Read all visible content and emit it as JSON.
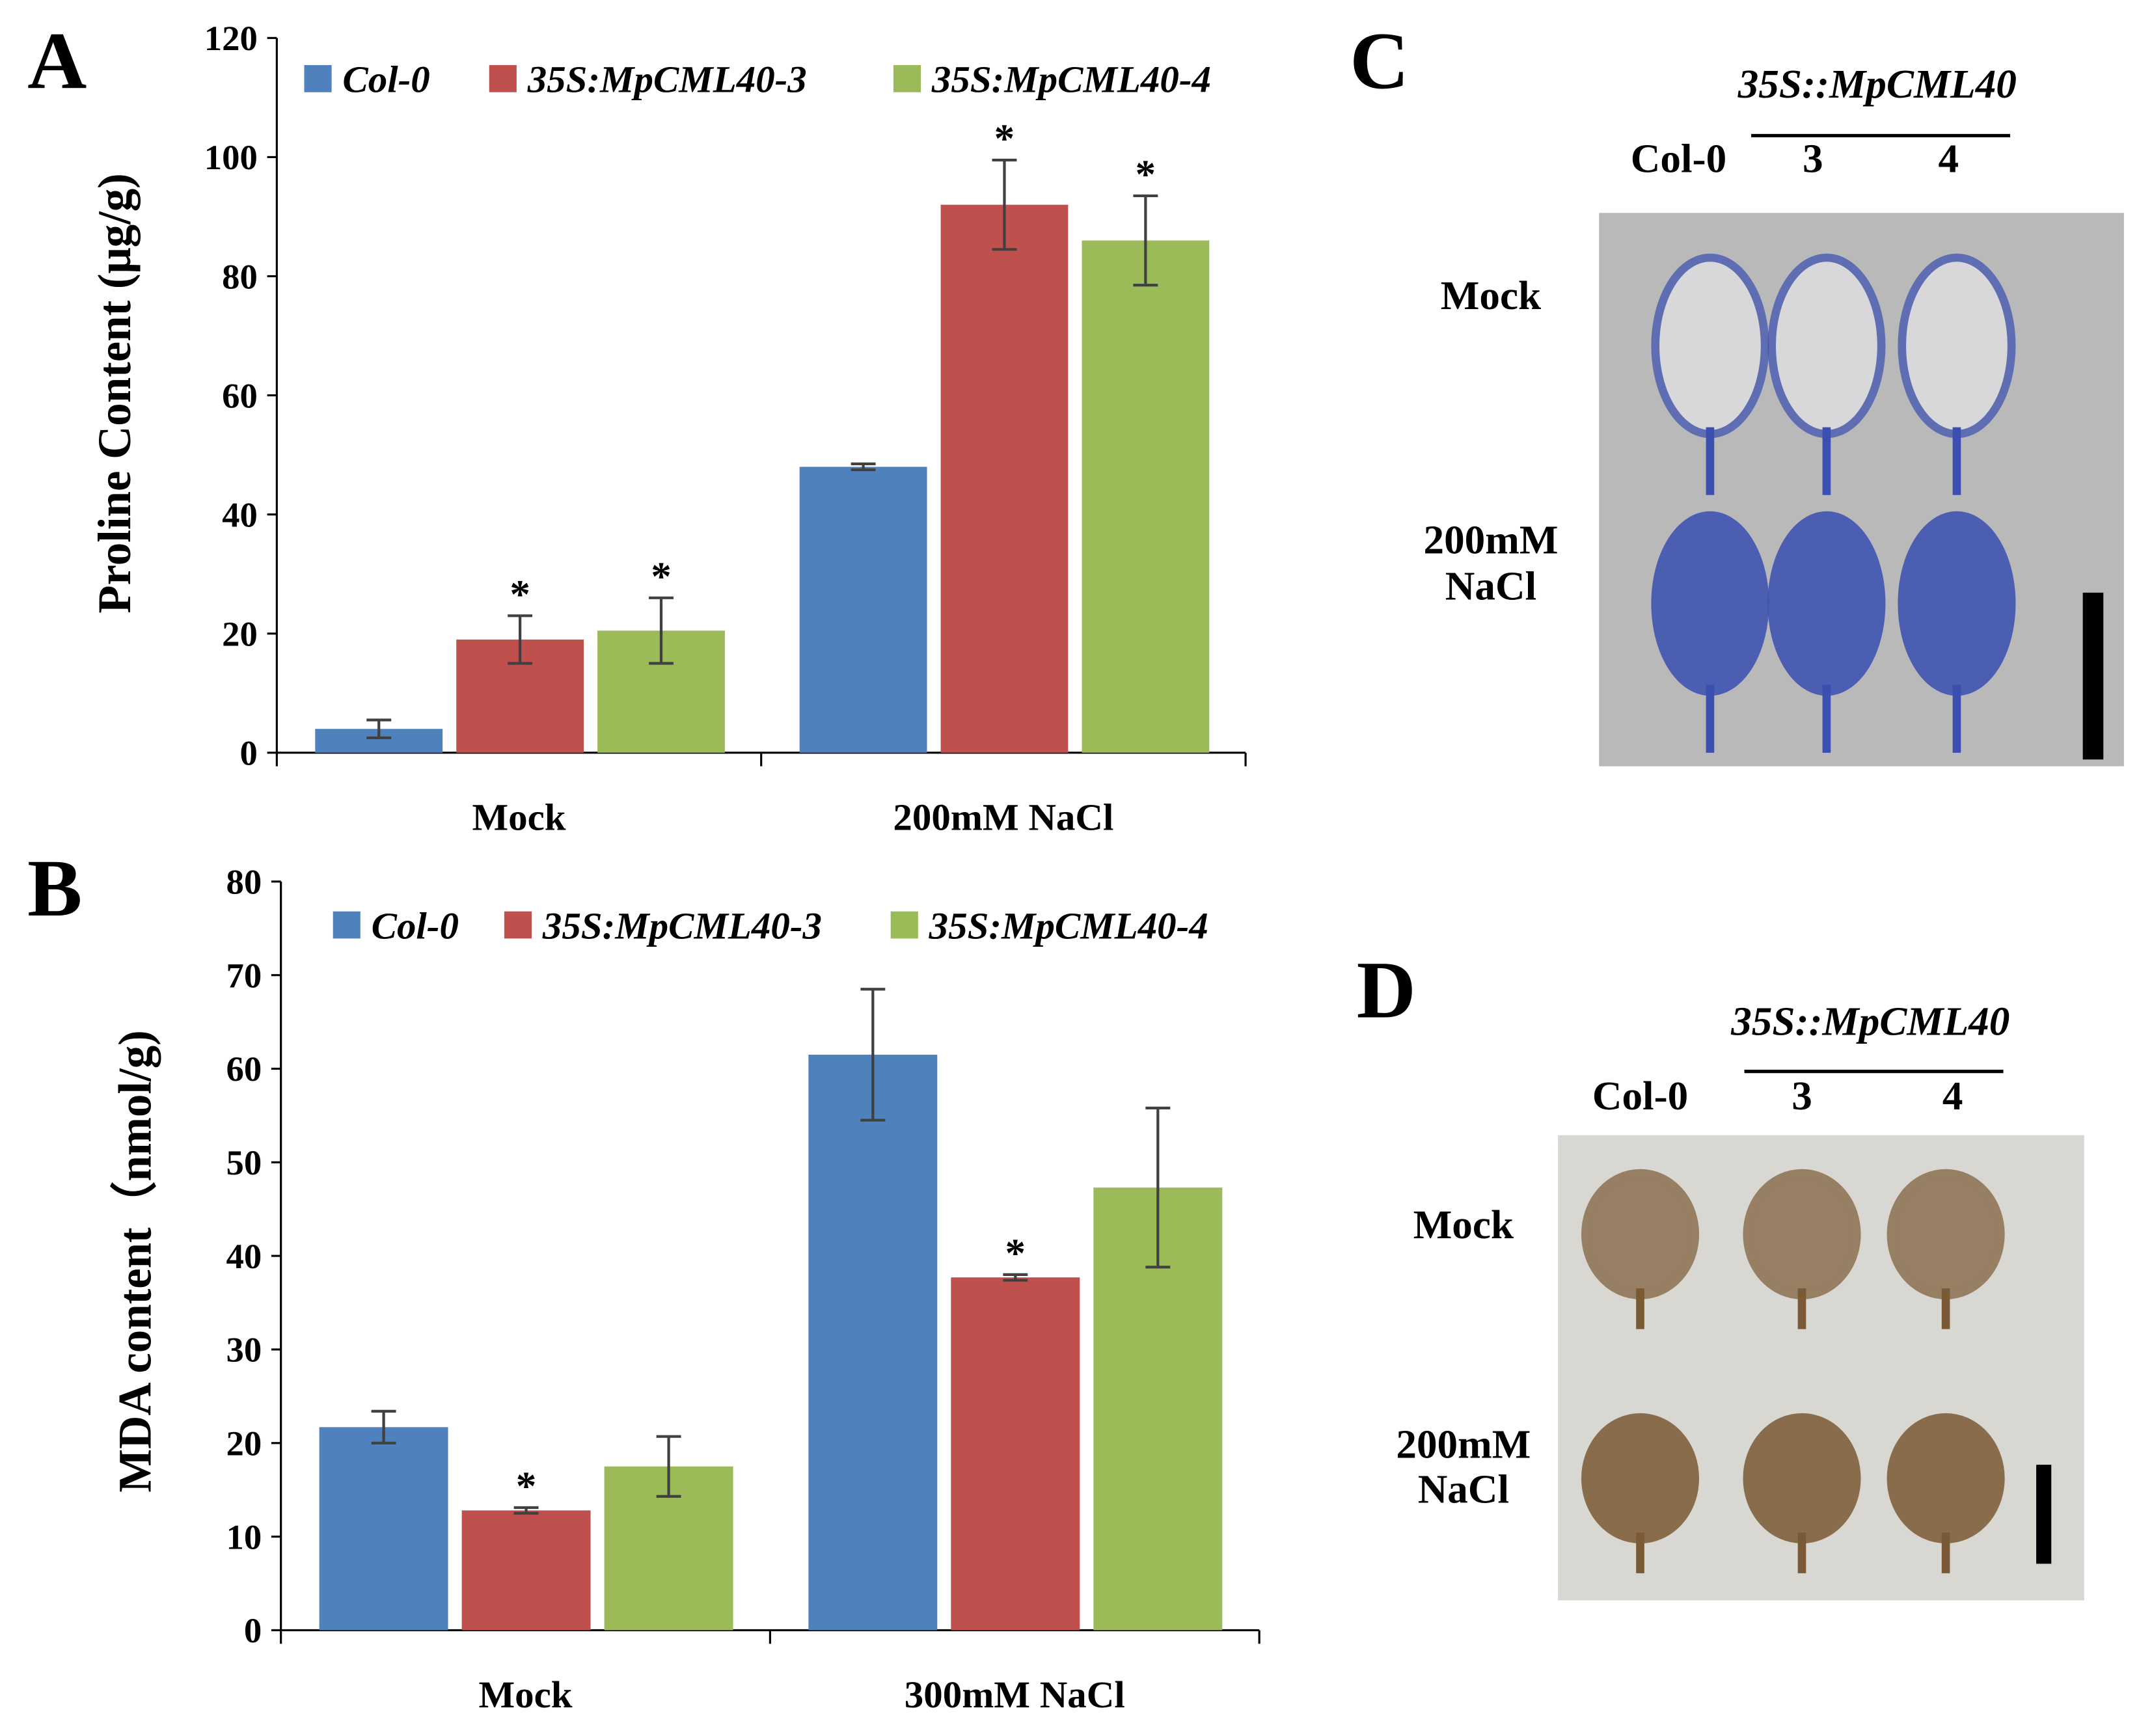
{
  "chart_data": [
    {
      "type": "bar",
      "panel": "A",
      "ylabel": "Proline Content (μg/g)",
      "categories": [
        "Mock",
        "200mM NaCl"
      ],
      "series": [
        {
          "name": "Col-0",
          "color": "#4f81bd",
          "values": [
            4,
            48
          ],
          "errors": [
            1.5,
            0.5
          ]
        },
        {
          "name": "35S:MpCML40-3",
          "color": "#c0504d",
          "values": [
            19,
            92
          ],
          "errors": [
            4,
            7.5
          ],
          "significance": [
            "*",
            "*"
          ]
        },
        {
          "name": "35S:MpCML40-4",
          "color": "#9bbb59",
          "values": [
            20.5,
            86
          ],
          "errors": [
            5.5,
            7.5
          ],
          "significance": [
            "*",
            "*"
          ]
        }
      ],
      "ylim": [
        0,
        120
      ],
      "yticks": [
        0,
        20,
        40,
        60,
        80,
        100,
        120
      ]
    },
    {
      "type": "bar",
      "panel": "B",
      "ylabel": "MDA content（nmol/g)",
      "categories": [
        "Mock",
        "300mM NaCl"
      ],
      "series": [
        {
          "name": "Col-0",
          "color": "#4f81bd",
          "values": [
            21.7,
            61.5
          ],
          "errors": [
            1.7,
            7
          ]
        },
        {
          "name": "35S:MpCML40-3",
          "color": "#c0504d",
          "values": [
            12.8,
            37.7
          ],
          "errors": [
            0.3,
            0.3
          ],
          "significance": [
            "*",
            "*"
          ]
        },
        {
          "name": "35S:MpCML40-4",
          "color": "#9bbb59",
          "values": [
            17.5,
            47.3
          ],
          "errors": [
            3.2,
            8.5
          ]
        }
      ],
      "ylim": [
        0,
        80
      ],
      "yticks": [
        0,
        10,
        20,
        30,
        40,
        50,
        60,
        70,
        80
      ]
    }
  ],
  "images": [
    {
      "panel": "C",
      "group": "35S::MpCML40",
      "columns": [
        "Col-0",
        "3",
        "4"
      ],
      "rows": [
        "Mock",
        "200mM NaCl"
      ]
    },
    {
      "panel": "D",
      "group": "35S::MpCML40",
      "columns": [
        "Col-0",
        "3",
        "4"
      ],
      "rows": [
        "Mock",
        "200mM NaCl"
      ]
    }
  ]
}
